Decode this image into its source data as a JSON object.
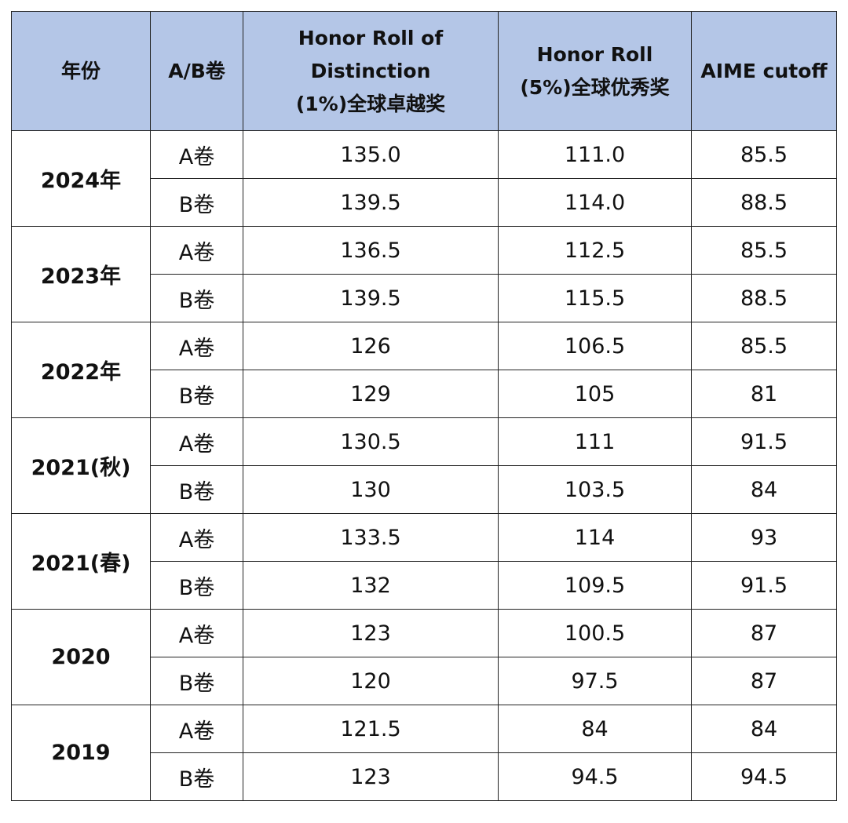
{
  "headers": [
    "年份",
    "A/B卷",
    "Honor Roll of\nDistinction\n(1%)全球卓越奖",
    "Honor Roll\n(5%)全球优秀奖",
    "AIME cutoff"
  ],
  "groups": [
    {
      "year": "2024年",
      "rows": [
        [
          "A卷",
          "135.0",
          "111.0",
          "85.5"
        ],
        [
          "B卷",
          "139.5",
          "114.0",
          "88.5"
        ]
      ]
    },
    {
      "year": "2023年",
      "rows": [
        [
          "A卷",
          "136.5",
          "112.5",
          "85.5"
        ],
        [
          "B卷",
          "139.5",
          "115.5",
          "88.5"
        ]
      ]
    },
    {
      "year": "2022年",
      "rows": [
        [
          "A卷",
          "126",
          "106.5",
          "85.5"
        ],
        [
          "B卷",
          "129",
          "105",
          "81"
        ]
      ]
    },
    {
      "year": "2021(秋)",
      "rows": [
        [
          "A卷",
          "130.5",
          "111",
          "91.5"
        ],
        [
          "B卷",
          "130",
          "103.5",
          "84"
        ]
      ]
    },
    {
      "year": "2021(春)",
      "rows": [
        [
          "A卷",
          "133.5",
          "114",
          "93"
        ],
        [
          "B卷",
          "132",
          "109.5",
          "91.5"
        ]
      ]
    },
    {
      "year": "2020",
      "rows": [
        [
          "A卷",
          "123",
          "100.5",
          "87"
        ],
        [
          "B卷",
          "120",
          "97.5",
          "87"
        ]
      ]
    },
    {
      "year": "2019",
      "rows": [
        [
          "A卷",
          "121.5",
          "84",
          "84"
        ],
        [
          "B卷",
          "123",
          "94.5",
          "94.5"
        ]
      ]
    }
  ],
  "colors": {
    "header_bg": "#b4c6e7",
    "border": "#222222"
  }
}
